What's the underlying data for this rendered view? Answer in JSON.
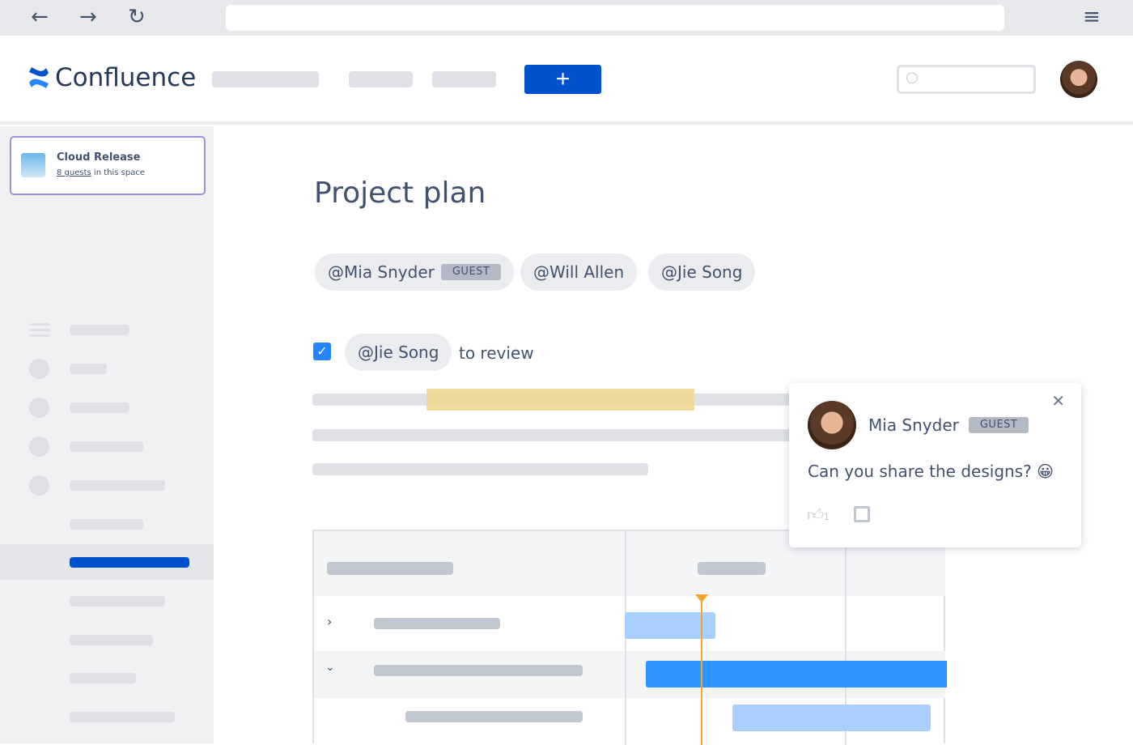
{
  "browser": {
    "back_icon": "arrow-left",
    "forward_icon": "arrow-right",
    "reload_icon": "reload",
    "menu_icon": "hamburger"
  },
  "header": {
    "logo_text": "Confluence",
    "create_label": "+"
  },
  "space": {
    "name": "Cloud Release",
    "guests_link": "8 guests",
    "guests_suffix": " in this space"
  },
  "page": {
    "title": "Project plan",
    "mentions": [
      {
        "label": "@Mia Snyder",
        "badge": "GUEST"
      },
      {
        "label": "@Will Allen"
      },
      {
        "label": "@Jie Song"
      }
    ],
    "task": {
      "checked": true,
      "mention": "@Jie Song",
      "text": "to review"
    }
  },
  "comment": {
    "author": "Mia Snyder",
    "badge": "GUEST",
    "text": "Can you share the designs?",
    "emoji": "😀",
    "likes": "1",
    "close": "✕"
  },
  "colors": {
    "brand": "#0052cc",
    "highlight": "#f0d890",
    "bar_dark": "#2e94ff",
    "bar_light": "#a8cfff",
    "today": "#f5a623"
  }
}
